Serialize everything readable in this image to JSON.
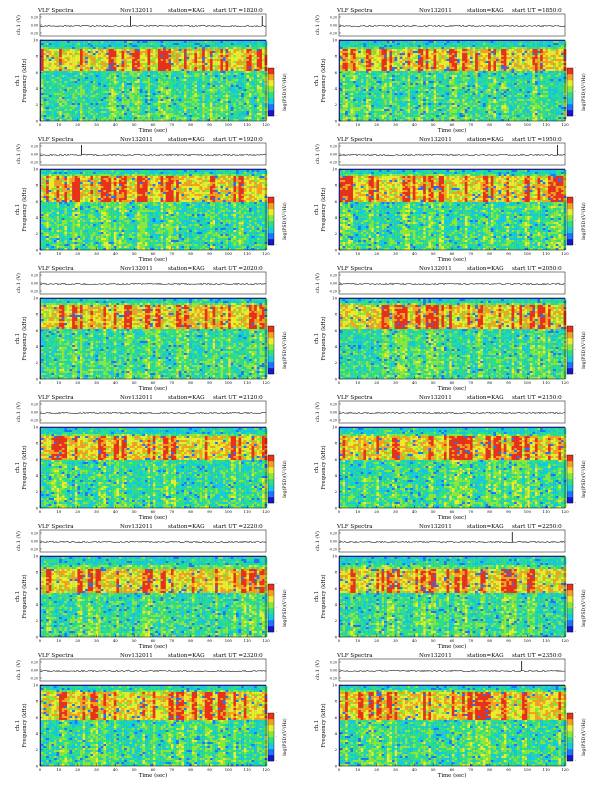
{
  "chart_data": {
    "type": "heatmap",
    "title_prefix": "VLF Spectra",
    "date": "Nov132011",
    "station": "station=KAG",
    "start_prefix": "start  UT  =",
    "timeseries_ylabel": "ch.1 (V)",
    "timeseries_ticks": [
      "0.20",
      "0.00",
      "-0.20"
    ],
    "spectrogram_channel": "ch.1",
    "ylabel": "Frequency  (kHz)",
    "xlabel": "Time  (sec)",
    "xlim": [
      0,
      120
    ],
    "ylim": [
      0,
      10
    ],
    "xticks": [
      "0",
      "10",
      "20",
      "30",
      "40",
      "50",
      "60",
      "70",
      "80",
      "90",
      "100",
      "110",
      "120"
    ],
    "yticks": [
      "0",
      "2",
      "4",
      "6",
      "8",
      "10"
    ],
    "colorbar_label": "log(PSD)(V²/Hz)",
    "colorbar_ticks": [
      "-",
      "-",
      "-"
    ],
    "colorscale": [
      "#1a16c8",
      "#1e74ff",
      "#16c8e0",
      "#2ede88",
      "#8ae83a",
      "#e6ee2e",
      "#f2a21e",
      "#e8321a"
    ],
    "panels": [
      {
        "start": "1820:0",
        "intense_band_khz": [
          6.4,
          9.0
        ],
        "spike_times_sec": [
          48,
          118
        ]
      },
      {
        "start": "1850:0",
        "intense_band_khz": [
          6.4,
          9.0
        ],
        "spike_times_sec": []
      },
      {
        "start": "1920:0",
        "intense_band_khz": [
          6.0,
          9.2
        ],
        "spike_times_sec": [
          22
        ]
      },
      {
        "start": "1950:0",
        "intense_band_khz": [
          6.0,
          9.2
        ],
        "spike_times_sec": [
          116
        ]
      },
      {
        "start": "2020:0",
        "intense_band_khz": [
          6.2,
          9.2
        ],
        "spike_times_sec": []
      },
      {
        "start": "2050:0",
        "intense_band_khz": [
          6.2,
          9.2
        ],
        "spike_times_sec": []
      },
      {
        "start": "2120:0",
        "intense_band_khz": [
          6.0,
          9.0
        ],
        "spike_times_sec": []
      },
      {
        "start": "2150:0",
        "intense_band_khz": [
          6.0,
          9.0
        ],
        "spike_times_sec": []
      },
      {
        "start": "2220:0",
        "intense_band_khz": [
          5.6,
          8.6
        ],
        "spike_times_sec": []
      },
      {
        "start": "2250:0",
        "intense_band_khz": [
          5.6,
          8.6
        ],
        "spike_times_sec": [
          92
        ]
      },
      {
        "start": "2320:0",
        "intense_band_khz": [
          5.8,
          9.2
        ],
        "spike_times_sec": []
      },
      {
        "start": "2350:0",
        "intense_band_khz": [
          5.8,
          9.2
        ],
        "spike_times_sec": [
          97
        ]
      }
    ]
  }
}
